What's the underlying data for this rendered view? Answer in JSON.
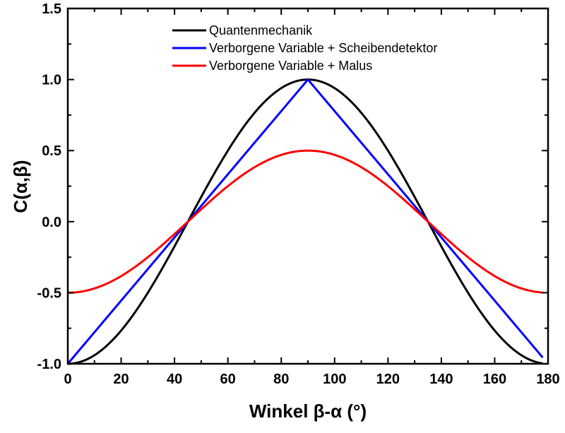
{
  "chart_data": {
    "type": "line",
    "title": "",
    "xlabel": "Winkel β-α (°)",
    "ylabel": "C(α,β)",
    "xlim": [
      0,
      180
    ],
    "ylim": [
      -1.0,
      1.5
    ],
    "x_ticks": [
      "0",
      "20",
      "40",
      "60",
      "80",
      "100",
      "120",
      "140",
      "160",
      "180"
    ],
    "x_tick_values": [
      0,
      20,
      40,
      60,
      80,
      100,
      120,
      140,
      160,
      180
    ],
    "y_ticks": [
      "-1.0",
      "-0.5",
      "0.0",
      "0.5",
      "1.0",
      "1.5"
    ],
    "y_tick_values": [
      -1.0,
      -0.5,
      0.0,
      0.5,
      1.0,
      1.5
    ],
    "grid": false,
    "legend_position": "top-center",
    "series": [
      {
        "name": "Quantenmechanik",
        "color": "#000000",
        "x": [
          0,
          10,
          20,
          30,
          40,
          45,
          50,
          60,
          70,
          80,
          90,
          100,
          110,
          120,
          130,
          135,
          140,
          150,
          160,
          170,
          178
        ],
        "y": [
          -1.0,
          -0.94,
          -0.766,
          -0.5,
          -0.174,
          0.0,
          0.174,
          0.5,
          0.766,
          0.94,
          1.0,
          0.94,
          0.766,
          0.5,
          0.174,
          0.0,
          -0.174,
          -0.5,
          -0.766,
          -0.94,
          -0.995
        ]
      },
      {
        "name": "Verborgene Variable + Scheibendetektor",
        "color": "#0000ff",
        "x": [
          0,
          45,
          90,
          135,
          178
        ],
        "y": [
          -1.0,
          0.0,
          1.0,
          0.0,
          -0.956
        ]
      },
      {
        "name": "Verborgene Variable + Malus",
        "color": "#ff0000",
        "x": [
          0,
          10,
          20,
          30,
          40,
          45,
          50,
          60,
          70,
          80,
          90,
          100,
          110,
          120,
          130,
          135,
          140,
          150,
          160,
          170,
          178
        ],
        "y": [
          -0.5,
          -0.47,
          -0.383,
          -0.25,
          -0.087,
          0.0,
          0.087,
          0.25,
          0.383,
          0.47,
          0.5,
          0.47,
          0.383,
          0.25,
          0.087,
          0.0,
          -0.087,
          -0.25,
          -0.383,
          -0.47,
          -0.498
        ]
      }
    ]
  }
}
